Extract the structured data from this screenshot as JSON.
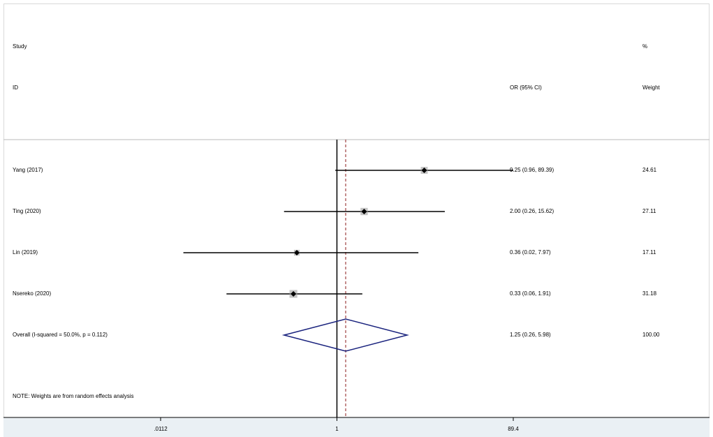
{
  "chart_data": {
    "type": "forest",
    "headers": {
      "study": "Study",
      "id": "ID",
      "ci": "OR (95% CI)",
      "pct": "%",
      "weight": "Weight"
    },
    "categories": [
      "Yang (2017)",
      "Ting (2020)",
      "Lin (2019)",
      "Nsereko (2020)"
    ],
    "values": [
      9.25,
      2.0,
      0.36,
      0.33
    ],
    "lower": [
      0.96,
      0.26,
      0.02,
      0.06
    ],
    "upper": [
      89.39,
      15.62,
      7.97,
      1.91
    ],
    "value_labels": [
      "9.25 (0.96, 89.39)",
      "2.00 (0.26, 15.62)",
      "0.36 (0.02, 7.97)",
      "0.33 (0.06, 1.91)"
    ],
    "weights": [
      24.61,
      27.11,
      17.11,
      31.18
    ],
    "weight_labels": [
      "24.61",
      "27.11",
      "17.11",
      "31.18"
    ],
    "overall": {
      "label": "Overall  (I-squared = 50.0%, p = 0.112)",
      "value": 1.25,
      "lower": 0.26,
      "upper": 5.98,
      "value_label": "1.25 (0.26, 5.98)",
      "weight": 100,
      "weight_label": "100.00",
      "color": "#1a237e"
    },
    "note": "NOTE: Weights are from random effects analysis",
    "log_scale": true,
    "reference_line": 1,
    "xlim": [
      0.0112,
      89.4
    ],
    "xticks": [
      {
        "value": 0.0112,
        "label": ".0112"
      },
      1,
      89.4
    ],
    "color": "#000000",
    "box_color": "#9e9e9e"
  }
}
